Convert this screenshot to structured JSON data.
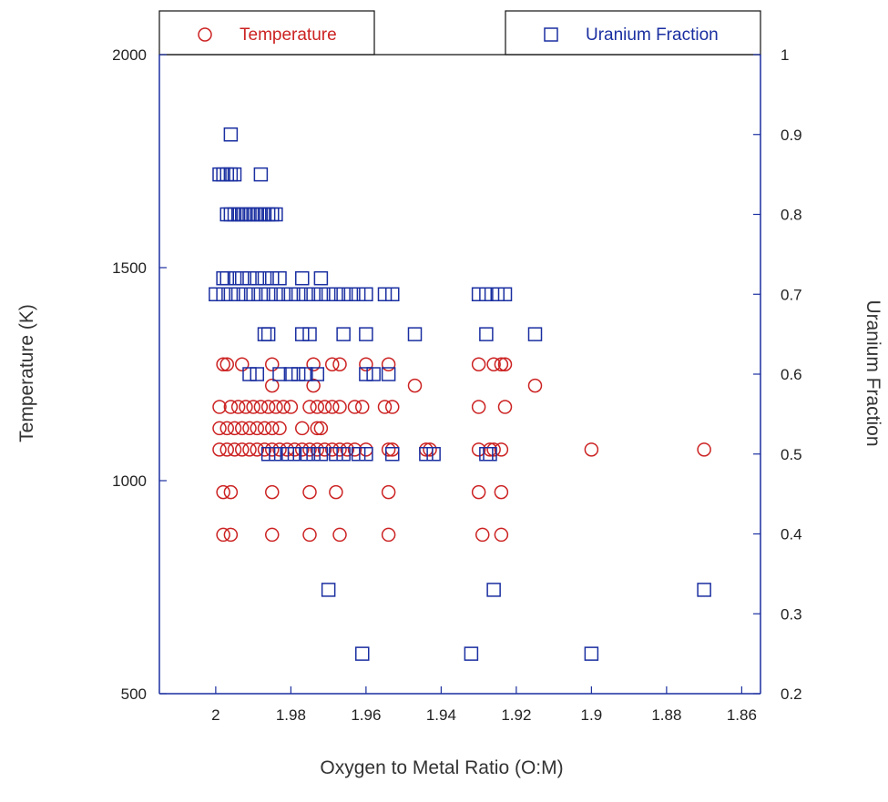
{
  "chart_data": {
    "type": "scatter",
    "title": "",
    "xlabel": "Oxygen to Metal Ratio (O:M)",
    "ylabel": "Temperature (K)",
    "y2label": "Uranium Fraction",
    "x_reversed": true,
    "xlim": [
      2.015,
      1.855
    ],
    "ylim": [
      500,
      2000
    ],
    "y2lim": [
      0.2,
      1.0
    ],
    "x_ticks": [
      2,
      1.98,
      1.96,
      1.94,
      1.92,
      1.9,
      1.88,
      1.86
    ],
    "x_tick_labels": [
      "2",
      "1.98",
      "1.96",
      "1.94",
      "1.92",
      "1.9",
      "1.88",
      "1.86"
    ],
    "y_ticks": [
      500,
      1000,
      1500,
      2000
    ],
    "y_tick_labels": [
      "500",
      "1000",
      "1500",
      "2000"
    ],
    "y2_ticks": [
      0.2,
      0.3,
      0.4,
      0.5,
      0.6,
      0.7,
      0.8,
      0.9,
      1
    ],
    "y2_tick_labels": [
      "0.2",
      "0.3",
      "0.4",
      "0.5",
      "0.6",
      "0.7",
      "0.8",
      "0.9",
      "1"
    ],
    "grid": false,
    "legend": "top, outside plot area",
    "series": [
      {
        "name": "Temperature",
        "marker": "circle",
        "color": "#cc2222",
        "axis": "left",
        "points": [
          [
            1.998,
            1273
          ],
          [
            1.997,
            1273
          ],
          [
            1.993,
            1273
          ],
          [
            1.985,
            1273
          ],
          [
            1.974,
            1273
          ],
          [
            1.969,
            1273
          ],
          [
            1.967,
            1273
          ],
          [
            1.96,
            1273
          ],
          [
            1.954,
            1273
          ],
          [
            1.93,
            1273
          ],
          [
            1.926,
            1273
          ],
          [
            1.924,
            1273
          ],
          [
            1.923,
            1273
          ],
          [
            1.985,
            1223
          ],
          [
            1.974,
            1223
          ],
          [
            1.947,
            1223
          ],
          [
            1.915,
            1223
          ],
          [
            1.999,
            1173
          ],
          [
            1.996,
            1173
          ],
          [
            1.994,
            1173
          ],
          [
            1.992,
            1173
          ],
          [
            1.99,
            1173
          ],
          [
            1.988,
            1173
          ],
          [
            1.986,
            1173
          ],
          [
            1.984,
            1173
          ],
          [
            1.982,
            1173
          ],
          [
            1.98,
            1173
          ],
          [
            1.975,
            1173
          ],
          [
            1.973,
            1173
          ],
          [
            1.971,
            1173
          ],
          [
            1.969,
            1173
          ],
          [
            1.967,
            1173
          ],
          [
            1.963,
            1173
          ],
          [
            1.961,
            1173
          ],
          [
            1.955,
            1173
          ],
          [
            1.953,
            1173
          ],
          [
            1.93,
            1173
          ],
          [
            1.923,
            1173
          ],
          [
            1.999,
            1123
          ],
          [
            1.997,
            1123
          ],
          [
            1.995,
            1123
          ],
          [
            1.993,
            1123
          ],
          [
            1.991,
            1123
          ],
          [
            1.989,
            1123
          ],
          [
            1.987,
            1123
          ],
          [
            1.985,
            1123
          ],
          [
            1.983,
            1123
          ],
          [
            1.977,
            1123
          ],
          [
            1.973,
            1123
          ],
          [
            1.972,
            1123
          ],
          [
            1.999,
            1073
          ],
          [
            1.997,
            1073
          ],
          [
            1.995,
            1073
          ],
          [
            1.993,
            1073
          ],
          [
            1.991,
            1073
          ],
          [
            1.989,
            1073
          ],
          [
            1.987,
            1073
          ],
          [
            1.985,
            1073
          ],
          [
            1.983,
            1073
          ],
          [
            1.981,
            1073
          ],
          [
            1.979,
            1073
          ],
          [
            1.977,
            1073
          ],
          [
            1.975,
            1073
          ],
          [
            1.973,
            1073
          ],
          [
            1.971,
            1073
          ],
          [
            1.969,
            1073
          ],
          [
            1.967,
            1073
          ],
          [
            1.965,
            1073
          ],
          [
            1.963,
            1073
          ],
          [
            1.96,
            1073
          ],
          [
            1.954,
            1073
          ],
          [
            1.953,
            1073
          ],
          [
            1.944,
            1073
          ],
          [
            1.943,
            1073
          ],
          [
            1.93,
            1073
          ],
          [
            1.927,
            1073
          ],
          [
            1.926,
            1073
          ],
          [
            1.924,
            1073
          ],
          [
            1.9,
            1073
          ],
          [
            1.87,
            1073
          ],
          [
            1.998,
            973
          ],
          [
            1.996,
            973
          ],
          [
            1.985,
            973
          ],
          [
            1.975,
            973
          ],
          [
            1.968,
            973
          ],
          [
            1.954,
            973
          ],
          [
            1.93,
            973
          ],
          [
            1.924,
            973
          ],
          [
            1.998,
            873
          ],
          [
            1.996,
            873
          ],
          [
            1.985,
            873
          ],
          [
            1.975,
            873
          ],
          [
            1.967,
            873
          ],
          [
            1.954,
            873
          ],
          [
            1.929,
            873
          ],
          [
            1.924,
            873
          ]
        ]
      },
      {
        "name": "Uranium Fraction",
        "marker": "square",
        "color": "#1a2fa0",
        "axis": "right",
        "points": [
          [
            1.996,
            0.9
          ],
          [
            1.999,
            0.85
          ],
          [
            1.998,
            0.85
          ],
          [
            1.997,
            0.85
          ],
          [
            1.996,
            0.85
          ],
          [
            1.995,
            0.85
          ],
          [
            1.988,
            0.85
          ],
          [
            1.997,
            0.8
          ],
          [
            1.996,
            0.8
          ],
          [
            1.995,
            0.8
          ],
          [
            1.994,
            0.8
          ],
          [
            1.993,
            0.8
          ],
          [
            1.992,
            0.8
          ],
          [
            1.991,
            0.8
          ],
          [
            1.99,
            0.8
          ],
          [
            1.989,
            0.8
          ],
          [
            1.988,
            0.8
          ],
          [
            1.987,
            0.8
          ],
          [
            1.986,
            0.8
          ],
          [
            1.985,
            0.8
          ],
          [
            1.984,
            0.8
          ],
          [
            1.998,
            0.72
          ],
          [
            1.997,
            0.72
          ],
          [
            1.995,
            0.72
          ],
          [
            1.993,
            0.72
          ],
          [
            1.991,
            0.72
          ],
          [
            1.989,
            0.72
          ],
          [
            1.987,
            0.72
          ],
          [
            1.985,
            0.72
          ],
          [
            1.983,
            0.72
          ],
          [
            1.977,
            0.72
          ],
          [
            1.972,
            0.72
          ],
          [
            2.0,
            0.7
          ],
          [
            1.998,
            0.7
          ],
          [
            1.996,
            0.7
          ],
          [
            1.994,
            0.7
          ],
          [
            1.992,
            0.7
          ],
          [
            1.99,
            0.7
          ],
          [
            1.988,
            0.7
          ],
          [
            1.986,
            0.7
          ],
          [
            1.984,
            0.7
          ],
          [
            1.982,
            0.7
          ],
          [
            1.98,
            0.7
          ],
          [
            1.978,
            0.7
          ],
          [
            1.976,
            0.7
          ],
          [
            1.974,
            0.7
          ],
          [
            1.972,
            0.7
          ],
          [
            1.97,
            0.7
          ],
          [
            1.968,
            0.7
          ],
          [
            1.966,
            0.7
          ],
          [
            1.964,
            0.7
          ],
          [
            1.962,
            0.7
          ],
          [
            1.96,
            0.7
          ],
          [
            1.955,
            0.7
          ],
          [
            1.953,
            0.7
          ],
          [
            1.93,
            0.7
          ],
          [
            1.928,
            0.7
          ],
          [
            1.925,
            0.7
          ],
          [
            1.923,
            0.7
          ],
          [
            1.987,
            0.65
          ],
          [
            1.986,
            0.65
          ],
          [
            1.977,
            0.65
          ],
          [
            1.975,
            0.65
          ],
          [
            1.966,
            0.65
          ],
          [
            1.96,
            0.65
          ],
          [
            1.947,
            0.65
          ],
          [
            1.928,
            0.65
          ],
          [
            1.915,
            0.65
          ],
          [
            1.991,
            0.6
          ],
          [
            1.989,
            0.6
          ],
          [
            1.983,
            0.6
          ],
          [
            1.98,
            0.6
          ],
          [
            1.978,
            0.6
          ],
          [
            1.976,
            0.6
          ],
          [
            1.973,
            0.6
          ],
          [
            1.96,
            0.6
          ],
          [
            1.958,
            0.6
          ],
          [
            1.954,
            0.6
          ],
          [
            1.986,
            0.5
          ],
          [
            1.984,
            0.5
          ],
          [
            1.981,
            0.5
          ],
          [
            1.979,
            0.5
          ],
          [
            1.976,
            0.5
          ],
          [
            1.974,
            0.5
          ],
          [
            1.972,
            0.5
          ],
          [
            1.968,
            0.5
          ],
          [
            1.966,
            0.5
          ],
          [
            1.962,
            0.5
          ],
          [
            1.96,
            0.5
          ],
          [
            1.953,
            0.5
          ],
          [
            1.944,
            0.5
          ],
          [
            1.942,
            0.5
          ],
          [
            1.928,
            0.5
          ],
          [
            1.927,
            0.5
          ],
          [
            1.97,
            0.33
          ],
          [
            1.926,
            0.33
          ],
          [
            1.87,
            0.33
          ],
          [
            1.961,
            0.25
          ],
          [
            1.932,
            0.25
          ],
          [
            1.9,
            0.25
          ]
        ]
      }
    ]
  }
}
